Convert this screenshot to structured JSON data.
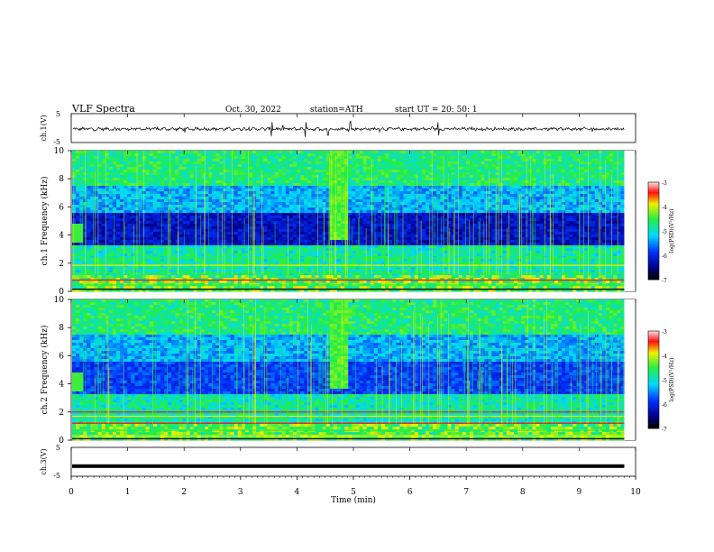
{
  "header": {
    "title": "VLF  Spectra",
    "date": "Oct. 30, 2022",
    "station": "station=ATH",
    "start": "start  UT  =    20: 50: 1"
  },
  "chart_data": [
    {
      "type": "line",
      "panel": "ch1-waveform",
      "ylabel": "ch.1(V)",
      "yticks": [
        "5",
        "-5"
      ],
      "ylim": [
        -5,
        5
      ],
      "xlim": [
        0,
        10
      ],
      "baseline": -0.3,
      "series": [
        {
          "values_description_free": true
        }
      ]
    },
    {
      "type": "heatmap",
      "panel": "ch1-spectrogram",
      "ylabel": "ch.1  Frequency  (kHz)",
      "yticks": [
        "0",
        "2",
        "4",
        "6",
        "8",
        "10"
      ],
      "ylim": [
        0,
        10
      ],
      "xlim": [
        0,
        10
      ],
      "colorbar": {
        "label": "log(PSD)(V²/Hz)",
        "ticks": [
          "-3",
          "-4",
          "-5",
          "-6",
          "-7"
        ],
        "range": [
          -7,
          -3
        ]
      }
    },
    {
      "type": "heatmap",
      "panel": "ch2-spectrogram",
      "ylabel": "ch.2  Frequency  (kHz)",
      "yticks": [
        "0",
        "2",
        "4",
        "6",
        "8",
        "10"
      ],
      "ylim": [
        0,
        10
      ],
      "xlim": [
        0,
        10
      ],
      "colorbar": {
        "label": "log(PSD)(V²/Hz)",
        "ticks": [
          "-3",
          "-4",
          "-5",
          "-6",
          "-7"
        ],
        "range": [
          -7,
          -3
        ]
      }
    },
    {
      "type": "line",
      "panel": "ch3-waveform",
      "ylabel": "ch.3(V)",
      "yticks": [
        "5",
        "-5"
      ],
      "ylim": [
        -5,
        5
      ],
      "xlim": [
        0,
        10
      ],
      "baseline": -1.5
    }
  ],
  "xaxis": {
    "label": "Time  (min)",
    "ticks": [
      "0",
      "1",
      "2",
      "3",
      "4",
      "5",
      "6",
      "7",
      "8",
      "9",
      "10"
    ],
    "range": [
      0,
      10
    ],
    "data_end": 9.8
  },
  "colors": {
    "dark": "#000000",
    "navy": "#00008c",
    "blue": "#0033ff",
    "cyan": "#00d8ff",
    "green": "#22ee44",
    "yellow": "#f0f000",
    "red": "#ff1010",
    "pink": "#ffd0d0"
  }
}
